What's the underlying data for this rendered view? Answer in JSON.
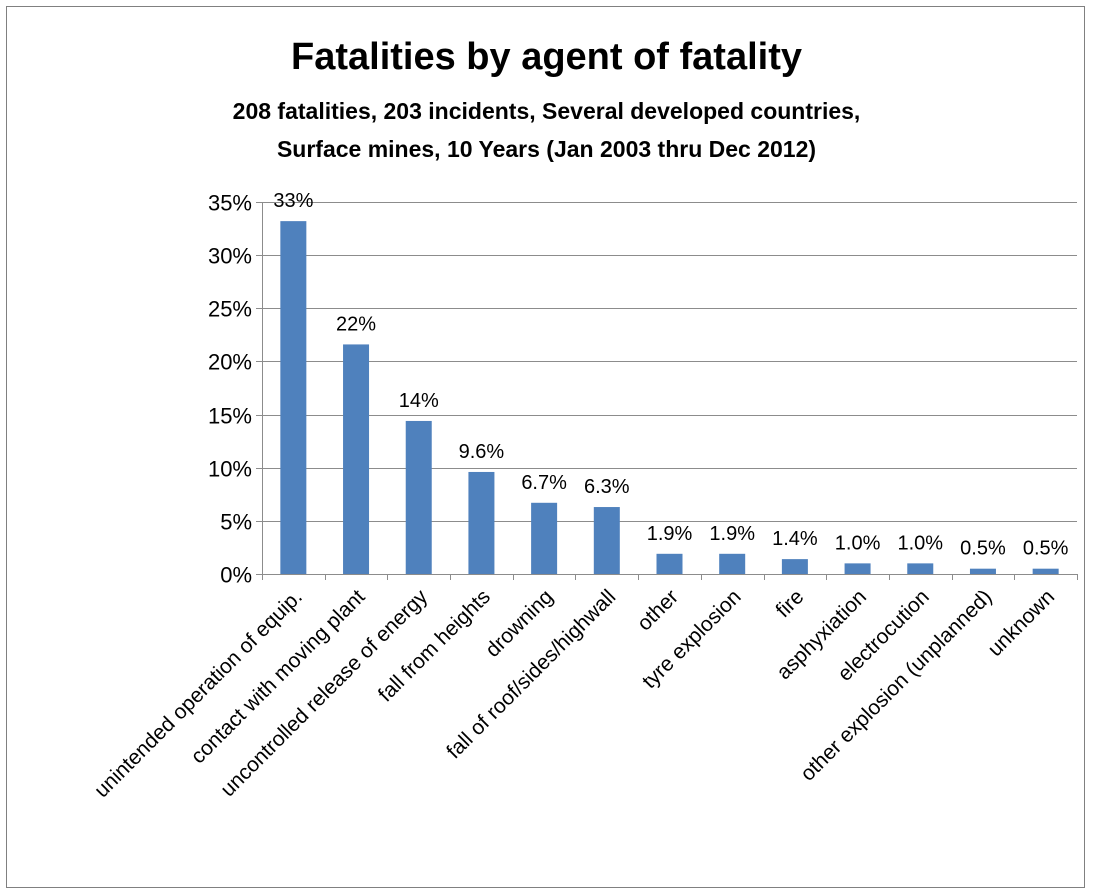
{
  "chart_data": {
    "type": "bar",
    "title": "Fatalities by agent of fatality",
    "subtitle_lines": [
      "208 fatalities, 203 incidents, Several developed countries,",
      "Surface mines, 10 Years (Jan 2003 thru Dec 2012)"
    ],
    "categories": [
      "unintended operation of equip.",
      "contact with moving plant",
      "uncontrolled release of energy",
      "fall from heights",
      "drowning",
      "fall of roof/sides/highwall",
      "other",
      "tyre explosion",
      "fire",
      "asphyxiation",
      "electrocution",
      "other explosion (unplanned)",
      "unknown"
    ],
    "values": [
      33.2,
      21.6,
      14.4,
      9.6,
      6.7,
      6.3,
      1.9,
      1.9,
      1.4,
      1.0,
      1.0,
      0.5,
      0.5
    ],
    "data_labels": [
      "33%",
      "22%",
      "14%",
      "9.6%",
      "6.7%",
      "6.3%",
      "1.9%",
      "1.9%",
      "1.4%",
      "1.0%",
      "1.0%",
      "0.5%",
      "0.5%"
    ],
    "ylim": [
      0,
      35
    ],
    "yticks": [
      0,
      5,
      10,
      15,
      20,
      25,
      30,
      35
    ],
    "ytick_labels": [
      "0%",
      "5%",
      "10%",
      "15%",
      "20%",
      "25%",
      "30%",
      "35%"
    ],
    "xlabel": "",
    "ylabel": "",
    "grid": true,
    "legend": "none",
    "bar_color": "#4f81bd"
  }
}
